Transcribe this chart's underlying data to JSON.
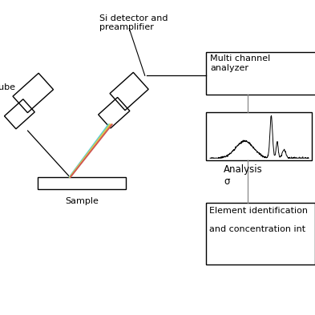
{
  "bg_color": "#ffffff",
  "box_color": "#000000",
  "line_color": "#888888",
  "labels": {
    "si_detector": "Si detector and\npreamplifier",
    "multichannel": "Multi channel\nanalyzer",
    "analysis": "Analysis\nσ",
    "element": "Element identification\n\nand concentration int",
    "sample": "Sample",
    "tube": "ube"
  },
  "ray_colors": [
    "#55ccee",
    "#88cc88",
    "#dddd55",
    "#ee9944",
    "#cc5555"
  ],
  "xlim": [
    0,
    10
  ],
  "ylim": [
    0,
    10
  ],
  "figsize": [
    3.93,
    3.93
  ],
  "dpi": 100
}
